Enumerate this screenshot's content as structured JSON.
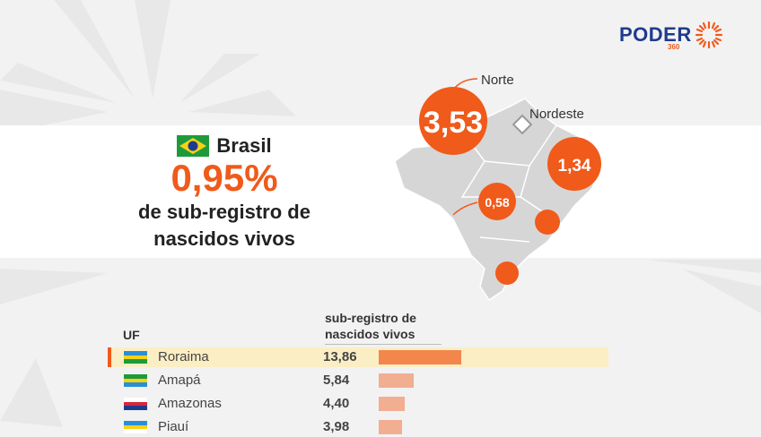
{
  "brand": {
    "name": "PODER",
    "sub": "360",
    "accent_color": "#f05a1a",
    "brand_color": "#1f3b8f"
  },
  "headline": {
    "country": "Brasil",
    "country_flag_icon": "brazil-flag-icon",
    "value": "0,95%",
    "description_line1": "de sub-registro de",
    "description_line2": "nascidos vivos"
  },
  "map": {
    "regions": [
      {
        "label": "Norte",
        "value": "3,53"
      },
      {
        "label": "Nordeste",
        "value": "1,34"
      },
      {
        "label": "",
        "value": "0,58"
      },
      {
        "label": "",
        "value": ""
      },
      {
        "label": "",
        "value": ""
      }
    ]
  },
  "chart_data": {
    "type": "bar",
    "header_category": "UF",
    "header_value_line1": "sub-registro de",
    "header_value_line2": "nascidos vivos",
    "categories": [
      "Roraima",
      "Amapá",
      "Amazonas",
      "Piauí"
    ],
    "labels": [
      "13,86",
      "5,84",
      "4,40",
      "3,98"
    ],
    "values": [
      13.86,
      5.84,
      4.4,
      3.98
    ],
    "highlighted": "Roraima",
    "bar_color": "#f05a1a"
  }
}
